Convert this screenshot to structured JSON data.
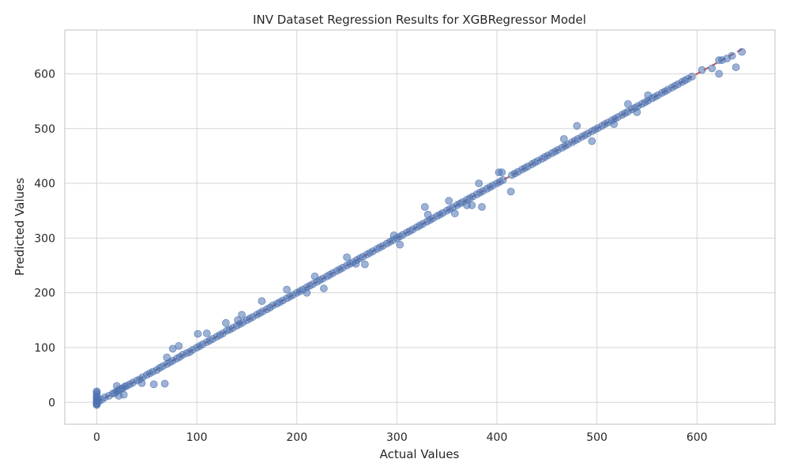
{
  "chart_data": {
    "type": "scatter",
    "title": "INV Dataset Regression Results for XGBRegressor Model",
    "xlabel": "Actual Values",
    "ylabel": "Predicted Values",
    "xlim": [
      -32,
      678
    ],
    "ylim": [
      -40,
      680
    ],
    "xticks": [
      0,
      100,
      200,
      300,
      400,
      500,
      600
    ],
    "yticks": [
      0,
      100,
      200,
      300,
      400,
      500,
      600
    ],
    "grid": true,
    "colors": {
      "points": "#4c72b0",
      "reference_line": "#c44e52",
      "grid": "#d5d5d5",
      "frame": "#cccccc"
    },
    "reference_line": {
      "style": "dashed",
      "from": [
        0,
        0
      ],
      "to": [
        645,
        645
      ]
    },
    "points": {
      "x": [
        0,
        0,
        0,
        0,
        0,
        0,
        0,
        0,
        2,
        5,
        8,
        12,
        16,
        18,
        20,
        22,
        24,
        26,
        28,
        30,
        33,
        36,
        40,
        43,
        46,
        50,
        53,
        56,
        60,
        63,
        66,
        70,
        73,
        76,
        80,
        83,
        86,
        90,
        93,
        96,
        100,
        103,
        106,
        110,
        113,
        116,
        120,
        123,
        126,
        130,
        133,
        136,
        140,
        143,
        146,
        150,
        153,
        156,
        160,
        163,
        166,
        170,
        173,
        176,
        180,
        183,
        186,
        190,
        193,
        196,
        200,
        203,
        206,
        210,
        213,
        216,
        220,
        223,
        226,
        230,
        233,
        236,
        240,
        243,
        246,
        250,
        253,
        256,
        260,
        263,
        266,
        270,
        273,
        276,
        280,
        283,
        286,
        290,
        293,
        296,
        300,
        303,
        306,
        310,
        313,
        316,
        320,
        323,
        326,
        330,
        333,
        336,
        340,
        343,
        346,
        350,
        353,
        356,
        360,
        363,
        366,
        370,
        373,
        376,
        380,
        383,
        386,
        390,
        393,
        396,
        400,
        403,
        406,
        415,
        418,
        421,
        425,
        428,
        431,
        435,
        438,
        441,
        445,
        448,
        451,
        455,
        458,
        461,
        465,
        468,
        471,
        475,
        478,
        481,
        485,
        488,
        491,
        495,
        498,
        501,
        505,
        508,
        511,
        515,
        518,
        521,
        525,
        528,
        531,
        535,
        538,
        541,
        545,
        548,
        551,
        555,
        558,
        561,
        565,
        568,
        571,
        575,
        578,
        581,
        585,
        588,
        591,
        595,
        605,
        615,
        622,
        625,
        630,
        635,
        645,
        0,
        0,
        0,
        20,
        22,
        27,
        45,
        57,
        68,
        70,
        76,
        82,
        101,
        110,
        129,
        141,
        145,
        165,
        190,
        210,
        218,
        227,
        250,
        259,
        268,
        297,
        303,
        328,
        331,
        352,
        358,
        370,
        375,
        382,
        385,
        402,
        405,
        414,
        467,
        480,
        495,
        517,
        531,
        540,
        551,
        622,
        639
      ],
      "y": [
        0,
        3,
        6,
        10,
        -3,
        -5,
        14,
        20,
        2,
        5,
        9,
        12,
        16,
        17,
        20,
        23,
        24,
        26,
        29,
        30,
        33,
        36,
        40,
        42,
        46,
        50,
        53,
        56,
        59,
        63,
        66,
        70,
        73,
        76,
        80,
        83,
        87,
        90,
        92,
        96,
        100,
        103,
        106,
        110,
        113,
        116,
        120,
        123,
        126,
        131,
        133,
        136,
        140,
        143,
        146,
        150,
        153,
        156,
        160,
        163,
        166,
        170,
        173,
        177,
        180,
        183,
        186,
        190,
        193,
        196,
        200,
        203,
        206,
        210,
        213,
        216,
        220,
        223,
        226,
        230,
        233,
        236,
        240,
        243,
        246,
        250,
        253,
        256,
        260,
        263,
        266,
        270,
        273,
        276,
        280,
        283,
        286,
        290,
        293,
        296,
        300,
        303,
        306,
        310,
        313,
        316,
        320,
        323,
        326,
        330,
        333,
        336,
        340,
        343,
        346,
        350,
        353,
        356,
        360,
        363,
        366,
        370,
        373,
        376,
        380,
        383,
        386,
        390,
        393,
        396,
        400,
        403,
        406,
        415,
        418,
        421,
        425,
        428,
        431,
        435,
        438,
        441,
        445,
        448,
        451,
        455,
        458,
        461,
        465,
        468,
        471,
        475,
        478,
        481,
        485,
        488,
        491,
        495,
        498,
        501,
        505,
        508,
        511,
        515,
        518,
        521,
        525,
        528,
        531,
        535,
        538,
        541,
        545,
        548,
        551,
        555,
        558,
        561,
        565,
        568,
        571,
        575,
        578,
        581,
        585,
        588,
        591,
        595,
        607,
        610,
        625,
        625,
        628,
        633,
        640,
        -2,
        8,
        18,
        30,
        12,
        14,
        35,
        33,
        34,
        82,
        98,
        103,
        125,
        126,
        145,
        150,
        160,
        185,
        206,
        200,
        230,
        208,
        265,
        253,
        252,
        305,
        288,
        357,
        343,
        368,
        345,
        360,
        360,
        400,
        357,
        420,
        420,
        385,
        481,
        505,
        477,
        508,
        545,
        530,
        561,
        600,
        612
      ]
    }
  }
}
